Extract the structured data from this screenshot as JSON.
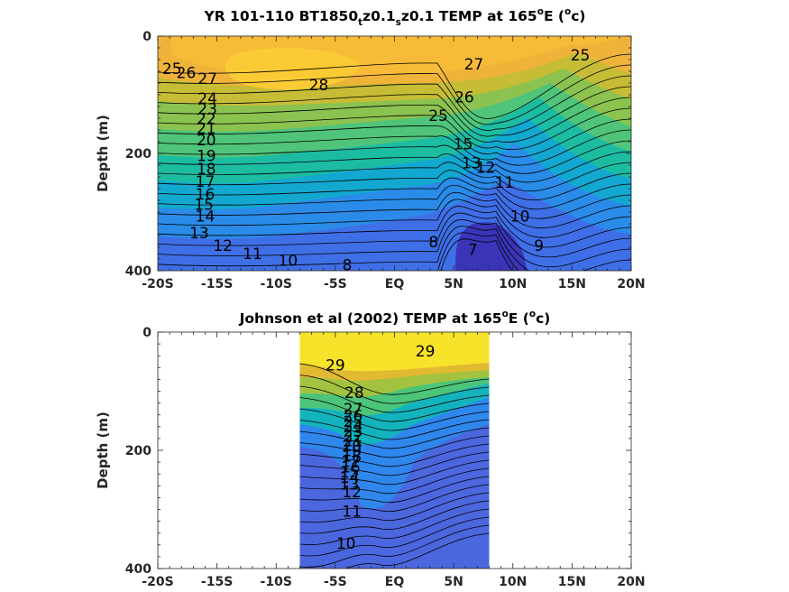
{
  "chart_data": [
    {
      "type": "contour",
      "title": {
        "prefix": "YR 101-110 BT1850",
        "sub1": "t",
        "mid": "z0.1",
        "sub2": "s",
        "mid2": "z0.1 TEMP at 165",
        "sup1": "o",
        "mid3": "E (",
        "sup2": "o",
        "suffix": "c)"
      },
      "ylabel": "Depth (m)",
      "xlim": [
        -20,
        20
      ],
      "ylim": [
        0,
        400
      ],
      "y_reversed": true,
      "xticks": [
        -20,
        -15,
        -10,
        -5,
        0,
        5,
        10,
        15,
        20
      ],
      "xticklabels": [
        "-20S",
        "-15S",
        "-10S",
        "-5S",
        "EQ",
        "5N",
        "10N",
        "15N",
        "20N"
      ],
      "yticks": [
        0,
        200,
        400
      ],
      "yticklabels": [
        "0",
        "200",
        "400"
      ],
      "data_extent": [
        -20,
        20
      ],
      "contour_labels": [
        {
          "t": "25",
          "x": -18.8,
          "y": 55
        },
        {
          "t": "26",
          "x": -17.6,
          "y": 62
        },
        {
          "t": "27",
          "x": -15.8,
          "y": 72
        },
        {
          "t": "28",
          "x": -6.4,
          "y": 83
        },
        {
          "t": "27",
          "x": 6.7,
          "y": 48
        },
        {
          "t": "25",
          "x": 15.7,
          "y": 32
        },
        {
          "t": "24",
          "x": -15.8,
          "y": 106
        },
        {
          "t": "23",
          "x": -15.8,
          "y": 124
        },
        {
          "t": "22",
          "x": -15.9,
          "y": 141
        },
        {
          "t": "21",
          "x": -15.9,
          "y": 157
        },
        {
          "t": "20",
          "x": -15.9,
          "y": 177
        },
        {
          "t": "19",
          "x": -15.9,
          "y": 204
        },
        {
          "t": "18",
          "x": -15.9,
          "y": 226
        },
        {
          "t": "17",
          "x": -16.0,
          "y": 248
        },
        {
          "t": "16",
          "x": -16.0,
          "y": 269
        },
        {
          "t": "15",
          "x": -16.1,
          "y": 287
        },
        {
          "t": "14",
          "x": -16.0,
          "y": 307
        },
        {
          "t": "13",
          "x": -16.5,
          "y": 335
        },
        {
          "t": "12",
          "x": -14.5,
          "y": 357
        },
        {
          "t": "11",
          "x": -12.0,
          "y": 371
        },
        {
          "t": "10",
          "x": -9.0,
          "y": 382
        },
        {
          "t": "8",
          "x": -4.0,
          "y": 390
        },
        {
          "t": "8",
          "x": 3.3,
          "y": 351
        },
        {
          "t": "7",
          "x": 6.6,
          "y": 364
        },
        {
          "t": "26",
          "x": 5.9,
          "y": 104
        },
        {
          "t": "25",
          "x": 3.7,
          "y": 135
        },
        {
          "t": "15",
          "x": 5.8,
          "y": 184
        },
        {
          "t": "13",
          "x": 6.5,
          "y": 216
        },
        {
          "t": "12",
          "x": 7.7,
          "y": 224
        },
        {
          "t": "11",
          "x": 9.3,
          "y": 249
        },
        {
          "t": "10",
          "x": 10.6,
          "y": 307
        },
        {
          "t": "9",
          "x": 12.2,
          "y": 357
        }
      ]
    },
    {
      "type": "contour",
      "title": {
        "prefix": "Johnson et al (2002) TEMP at 165",
        "sup1": "o",
        "mid": "E (",
        "sup2": "o",
        "suffix": "c)"
      },
      "ylabel": "Depth (m)",
      "xlim": [
        -20,
        20
      ],
      "ylim": [
        0,
        400
      ],
      "y_reversed": true,
      "xticks": [
        -20,
        -15,
        -10,
        -5,
        0,
        5,
        10,
        15,
        20
      ],
      "xticklabels": [
        "-20S",
        "-15S",
        "-10S",
        "-5S",
        "EQ",
        "5N",
        "10N",
        "15N",
        "20N"
      ],
      "yticks": [
        0,
        200,
        400
      ],
      "yticklabels": [
        "0",
        "200",
        "400"
      ],
      "data_extent": [
        -8,
        8
      ],
      "contour_labels": [
        {
          "t": "29",
          "x": -5.0,
          "y": 56
        },
        {
          "t": "29",
          "x": 2.6,
          "y": 32
        },
        {
          "t": "28",
          "x": -3.4,
          "y": 102
        },
        {
          "t": "27",
          "x": -3.5,
          "y": 130
        },
        {
          "t": "26",
          "x": -3.5,
          "y": 141
        },
        {
          "t": "25",
          "x": -3.5,
          "y": 151
        },
        {
          "t": "24",
          "x": -3.5,
          "y": 159
        },
        {
          "t": "23",
          "x": -3.5,
          "y": 167
        },
        {
          "t": "22",
          "x": -3.5,
          "y": 176
        },
        {
          "t": "21",
          "x": -3.5,
          "y": 184
        },
        {
          "t": "20",
          "x": -3.6,
          "y": 192
        },
        {
          "t": "19",
          "x": -3.6,
          "y": 201
        },
        {
          "t": "18",
          "x": -3.6,
          "y": 210
        },
        {
          "t": "17",
          "x": -3.7,
          "y": 219
        },
        {
          "t": "16",
          "x": -3.7,
          "y": 228
        },
        {
          "t": "15",
          "x": -3.8,
          "y": 237
        },
        {
          "t": "14",
          "x": -3.8,
          "y": 246
        },
        {
          "t": "13",
          "x": -3.8,
          "y": 257
        },
        {
          "t": "12",
          "x": -3.6,
          "y": 270
        },
        {
          "t": "11",
          "x": -3.6,
          "y": 303
        },
        {
          "t": "10",
          "x": -4.1,
          "y": 357
        }
      ]
    }
  ]
}
